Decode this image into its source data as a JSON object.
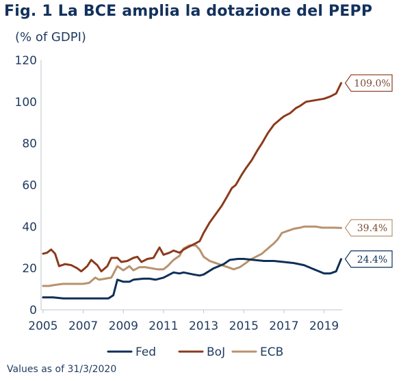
{
  "title": "Fig. 1 La BCE amplia la dotazione del PEPP",
  "subtitle": "(% of GDPI)",
  "footnote": "Values as of 31/3/2020",
  "chart_data": {
    "type": "line",
    "ylim": [
      0,
      120
    ],
    "y_ticks": [
      "0",
      "20",
      "40",
      "60",
      "80",
      "100",
      "120"
    ],
    "x_ticks": [
      "2005",
      "2007",
      "2009",
      "2011",
      "2013",
      "2015",
      "2017",
      "2019"
    ],
    "xlim": [
      2004.9,
      2019.9
    ],
    "grid": false,
    "legend_position": "bottom",
    "series": [
      {
        "name": "Fed",
        "color": "#0d2f57",
        "end_label": "24.4%",
        "points": [
          [
            2005.0,
            6
          ],
          [
            2005.5,
            6
          ],
          [
            2006.0,
            5.5
          ],
          [
            2006.5,
            5.5
          ],
          [
            2007.0,
            5.5
          ],
          [
            2007.5,
            5.5
          ],
          [
            2008.0,
            5.5
          ],
          [
            2008.25,
            5.5
          ],
          [
            2008.5,
            7
          ],
          [
            2008.7,
            14.5
          ],
          [
            2009.0,
            13.5
          ],
          [
            2009.3,
            13.5
          ],
          [
            2009.5,
            14.5
          ],
          [
            2010.0,
            15
          ],
          [
            2010.3,
            15
          ],
          [
            2010.6,
            14.5
          ],
          [
            2011.0,
            15.5
          ],
          [
            2011.5,
            18
          ],
          [
            2011.8,
            17.5
          ],
          [
            2012.0,
            18
          ],
          [
            2012.5,
            17
          ],
          [
            2012.8,
            16.5
          ],
          [
            2013.0,
            17
          ],
          [
            2013.5,
            20
          ],
          [
            2014.0,
            22
          ],
          [
            2014.3,
            24
          ],
          [
            2014.7,
            24.5
          ],
          [
            2015.0,
            24.5
          ],
          [
            2015.5,
            24
          ],
          [
            2016.0,
            23.5
          ],
          [
            2016.5,
            23.5
          ],
          [
            2017.0,
            23
          ],
          [
            2017.5,
            22.5
          ],
          [
            2018.0,
            21.5
          ],
          [
            2018.5,
            19.5
          ],
          [
            2019.0,
            17.5
          ],
          [
            2019.3,
            17.5
          ],
          [
            2019.6,
            18.5
          ],
          [
            2019.85,
            24.4
          ]
        ]
      },
      {
        "name": "BoJ",
        "color": "#8b3a1c",
        "end_label": "109.0%",
        "points": [
          [
            2005.0,
            27
          ],
          [
            2005.2,
            27.5
          ],
          [
            2005.4,
            29
          ],
          [
            2005.6,
            27
          ],
          [
            2005.8,
            21
          ],
          [
            2006.1,
            22
          ],
          [
            2006.4,
            21.5
          ],
          [
            2006.7,
            20
          ],
          [
            2006.9,
            18.5
          ],
          [
            2007.2,
            21
          ],
          [
            2007.4,
            24
          ],
          [
            2007.7,
            21.5
          ],
          [
            2007.9,
            18.5
          ],
          [
            2008.2,
            21
          ],
          [
            2008.4,
            25
          ],
          [
            2008.7,
            25
          ],
          [
            2008.9,
            23
          ],
          [
            2009.2,
            23.5
          ],
          [
            2009.5,
            25
          ],
          [
            2009.7,
            25.5
          ],
          [
            2009.9,
            23
          ],
          [
            2010.2,
            24.5
          ],
          [
            2010.5,
            25
          ],
          [
            2010.8,
            30
          ],
          [
            2011.0,
            26.5
          ],
          [
            2011.3,
            27.5
          ],
          [
            2011.5,
            28.5
          ],
          [
            2011.8,
            27.5
          ],
          [
            2012.0,
            29
          ],
          [
            2012.3,
            30.5
          ],
          [
            2012.6,
            32
          ],
          [
            2012.8,
            33
          ],
          [
            2013.0,
            37
          ],
          [
            2013.3,
            42
          ],
          [
            2013.6,
            46
          ],
          [
            2013.9,
            50
          ],
          [
            2014.2,
            55
          ],
          [
            2014.4,
            58.5
          ],
          [
            2014.6,
            60
          ],
          [
            2014.9,
            65
          ],
          [
            2015.1,
            68
          ],
          [
            2015.4,
            72
          ],
          [
            2015.7,
            77
          ],
          [
            2015.9,
            80
          ],
          [
            2016.2,
            85
          ],
          [
            2016.5,
            89
          ],
          [
            2016.8,
            91.5
          ],
          [
            2017.0,
            93
          ],
          [
            2017.3,
            94.5
          ],
          [
            2017.6,
            97
          ],
          [
            2017.8,
            98
          ],
          [
            2018.1,
            100
          ],
          [
            2018.4,
            100.5
          ],
          [
            2018.7,
            101
          ],
          [
            2019.0,
            101.5
          ],
          [
            2019.3,
            102.5
          ],
          [
            2019.6,
            104
          ],
          [
            2019.85,
            109.0
          ]
        ]
      },
      {
        "name": "ECB",
        "color": "#b8916d",
        "end_label": "39.4%",
        "points": [
          [
            2005.0,
            11.5
          ],
          [
            2005.3,
            11.5
          ],
          [
            2005.6,
            12
          ],
          [
            2006.0,
            12.5
          ],
          [
            2006.5,
            12.5
          ],
          [
            2007.0,
            12.5
          ],
          [
            2007.3,
            13
          ],
          [
            2007.6,
            15.5
          ],
          [
            2007.8,
            14.5
          ],
          [
            2008.1,
            15
          ],
          [
            2008.4,
            15.5
          ],
          [
            2008.7,
            21
          ],
          [
            2009.0,
            19
          ],
          [
            2009.3,
            21
          ],
          [
            2009.5,
            19
          ],
          [
            2009.8,
            20.5
          ],
          [
            2010.1,
            20.5
          ],
          [
            2010.4,
            20
          ],
          [
            2010.7,
            19.5
          ],
          [
            2011.0,
            19.5
          ],
          [
            2011.2,
            21
          ],
          [
            2011.5,
            24
          ],
          [
            2011.8,
            26
          ],
          [
            2012.0,
            29.5
          ],
          [
            2012.3,
            31
          ],
          [
            2012.6,
            31
          ],
          [
            2012.8,
            29
          ],
          [
            2013.0,
            25.5
          ],
          [
            2013.3,
            23.5
          ],
          [
            2013.6,
            22.5
          ],
          [
            2013.9,
            21.5
          ],
          [
            2014.2,
            20.5
          ],
          [
            2014.5,
            19.5
          ],
          [
            2014.8,
            20.5
          ],
          [
            2015.1,
            22.5
          ],
          [
            2015.3,
            24
          ],
          [
            2015.6,
            25.5
          ],
          [
            2015.9,
            27
          ],
          [
            2016.2,
            29.5
          ],
          [
            2016.5,
            32
          ],
          [
            2016.7,
            34
          ],
          [
            2016.9,
            37
          ],
          [
            2017.2,
            38
          ],
          [
            2017.5,
            39
          ],
          [
            2017.8,
            39.5
          ],
          [
            2018.0,
            40
          ],
          [
            2018.3,
            40
          ],
          [
            2018.6,
            40
          ],
          [
            2018.9,
            39.5
          ],
          [
            2019.2,
            39.5
          ],
          [
            2019.5,
            39.5
          ],
          [
            2019.85,
            39.4
          ]
        ]
      }
    ]
  }
}
